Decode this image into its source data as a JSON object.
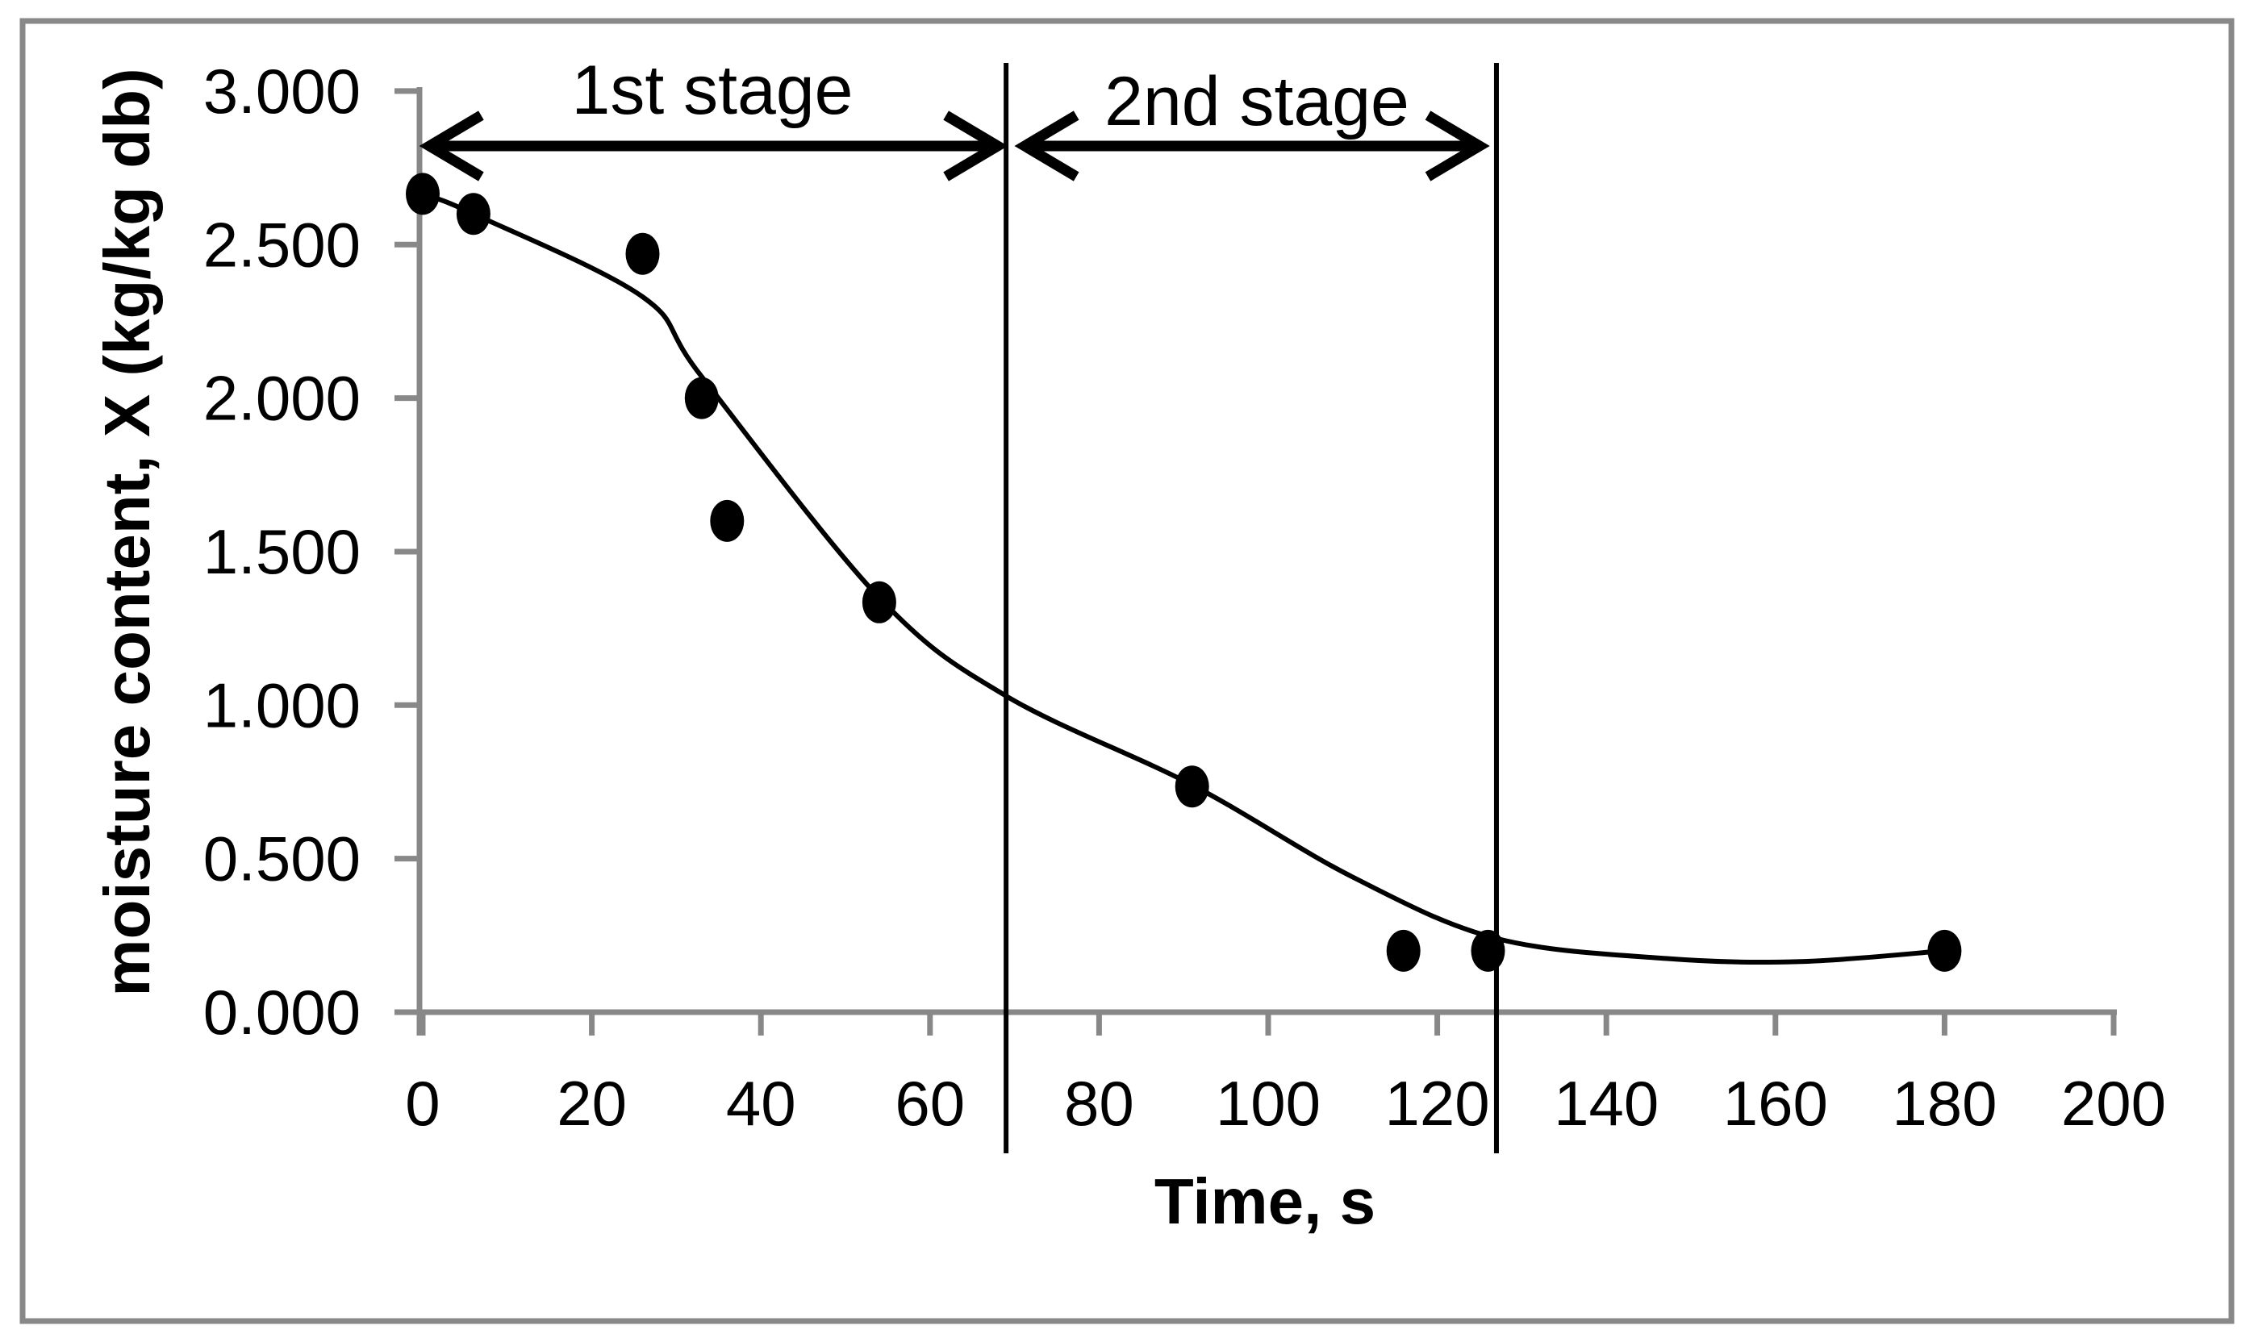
{
  "figure": {
    "background_color": "#ffffff",
    "border_color": "#888888",
    "axis_color": "#888888",
    "data_color": "#000000"
  },
  "chart_data": {
    "type": "scatter",
    "title": "",
    "xlabel": "Time, s",
    "ylabel": "moisture content, X (kg/kg db)",
    "xlim": [
      0,
      200
    ],
    "ylim": [
      0.0,
      3.0
    ],
    "grid": false,
    "legend_position": "none",
    "x_ticks": [
      {
        "value": 0,
        "label": "0"
      },
      {
        "value": 20,
        "label": "20"
      },
      {
        "value": 40,
        "label": "40"
      },
      {
        "value": 60,
        "label": "60"
      },
      {
        "value": 80,
        "label": "80"
      },
      {
        "value": 100,
        "label": "100"
      },
      {
        "value": 120,
        "label": "120"
      },
      {
        "value": 140,
        "label": "140"
      },
      {
        "value": 160,
        "label": "160"
      },
      {
        "value": 180,
        "label": "180"
      },
      {
        "value": 200,
        "label": "200"
      }
    ],
    "y_ticks": [
      {
        "value": 0.0,
        "label": "0.000"
      },
      {
        "value": 0.5,
        "label": "0.500"
      },
      {
        "value": 1.0,
        "label": "1.000"
      },
      {
        "value": 1.5,
        "label": "1.500"
      },
      {
        "value": 2.0,
        "label": "2.000"
      },
      {
        "value": 2.5,
        "label": "2.500"
      },
      {
        "value": 3.0,
        "label": "3.000"
      }
    ],
    "series": [
      {
        "name": "moisture content measurements",
        "marker": "filled-black-circle",
        "points": [
          {
            "t": 0,
            "x": 2.665
          },
          {
            "t": 6,
            "x": 2.6
          },
          {
            "t": 26,
            "x": 2.47
          },
          {
            "t": 33,
            "x": 2.0
          },
          {
            "t": 36,
            "x": 1.6
          },
          {
            "t": 54,
            "x": 1.335
          },
          {
            "t": 91,
            "x": 0.735
          },
          {
            "t": 116,
            "x": 0.2
          },
          {
            "t": 126,
            "x": 0.2
          },
          {
            "t": 180,
            "x": 0.2
          }
        ]
      }
    ],
    "fitted_curve": [
      {
        "t": 0,
        "x": 2.665
      },
      {
        "t": 6,
        "x": 2.6
      },
      {
        "t": 26,
        "x": 2.33
      },
      {
        "t": 33,
        "x": 2.07
      },
      {
        "t": 54,
        "x": 1.35
      },
      {
        "t": 69,
        "x": 1.03
      },
      {
        "t": 91,
        "x": 0.74
      },
      {
        "t": 110,
        "x": 0.44
      },
      {
        "t": 127,
        "x": 0.24
      },
      {
        "t": 147,
        "x": 0.175
      },
      {
        "t": 163,
        "x": 0.165
      },
      {
        "t": 180,
        "x": 0.2
      }
    ],
    "stage_boundaries_t": [
      69,
      127
    ],
    "annotations": [
      {
        "label": "1st stage",
        "arrow_t_from": 0.8,
        "arrow_t_to": 68.0
      },
      {
        "label": "2nd stage",
        "arrow_t_from": 71.2,
        "arrow_t_to": 125.0
      }
    ]
  }
}
